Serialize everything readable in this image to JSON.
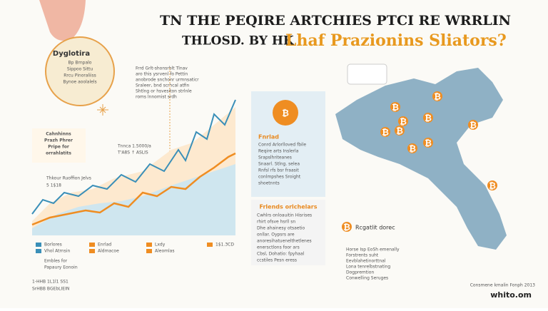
{
  "header": {
    "line1": "TN THE PEQIRE ARTCHIES PTCI RE WRRLIN",
    "line2_lead": "THLOSD. BY HK",
    "line2_highlight": "Lhaf Prazionins Sliators?"
  },
  "badge": {
    "title": "Dyglotira",
    "lines": [
      "Bp Brnpalo",
      "Sippoo Sittu",
      "Rrcu Pinoraliiss",
      "Bynoe aoolalels"
    ]
  },
  "intro": {
    "lines": [
      "Frrd Grlt-shonsrblt Tlnav",
      "aro this ysrvenl fo Pettin",
      "anobrode snchonr urmnsaticr",
      "Sraleer, bnd scrhcal atfin",
      "Shtlng or hsvesiton strlnle",
      "roms lnnomist srdh"
    ]
  },
  "chart": {
    "side_label": [
      "Cahnhinns",
      "Prazh Phrer",
      "Pripe for",
      "orrahlatits"
    ],
    "axis_note": [
      "Thkour Ruoffion Jelvs",
      "5 1$18"
    ],
    "peak_note": [
      "Tnnca 1.5000/a",
      "T'A8S ↑ ASLIS"
    ]
  },
  "legend": {
    "items": [
      "Borlores",
      "Vhol Atrnsin",
      "Enrlad",
      "Aldmacoe",
      "Lxdy",
      "Aleomlas",
      "1$1.3CD"
    ],
    "bottom": [
      "Embles for",
      "Papaury Eonoin"
    ],
    "footer": [
      "1-HHB 1L1l1 SS1",
      "SrHBB BGEbLIEIN"
    ]
  },
  "panel_top": {
    "title": "Fnrlad",
    "lines": [
      "Conrd Arlorlloved fbile",
      "Reqire arts Inslerla",
      "Srapslhriteanes",
      "Snaarl. Stlng. selea",
      "Rnfsl rfs bsr fraasit",
      "conlmpshes Sroight",
      "shoetnnts"
    ]
  },
  "panel_bottom": {
    "title": "Frlends orlchelars",
    "lines": [
      "Cwhlrs onloauitin Hisrises",
      "rhirt ofsve hsrll sn",
      "Dhe ahainesy otsaetio",
      "onllar. Oypsrs are",
      "anoresihatuenelthetlenes",
      "enersctlons foor ars",
      "Cbsl, Dohatio: fpyhaal",
      "ccstiles Pesn eress"
    ]
  },
  "map": {
    "legend_label": "Rcgatlit dorec",
    "note": [
      "Horse Isp EoSh emenally",
      "Forstrents suht",
      "Eevblahetinorttnal",
      "Lona tenrelbstnating",
      "Dogpremtion",
      "Conwelling Seruges"
    ],
    "credit": "Consmene kmalin Fonph 2013",
    "brand": "whito.om"
  },
  "symbol": "₿"
}
